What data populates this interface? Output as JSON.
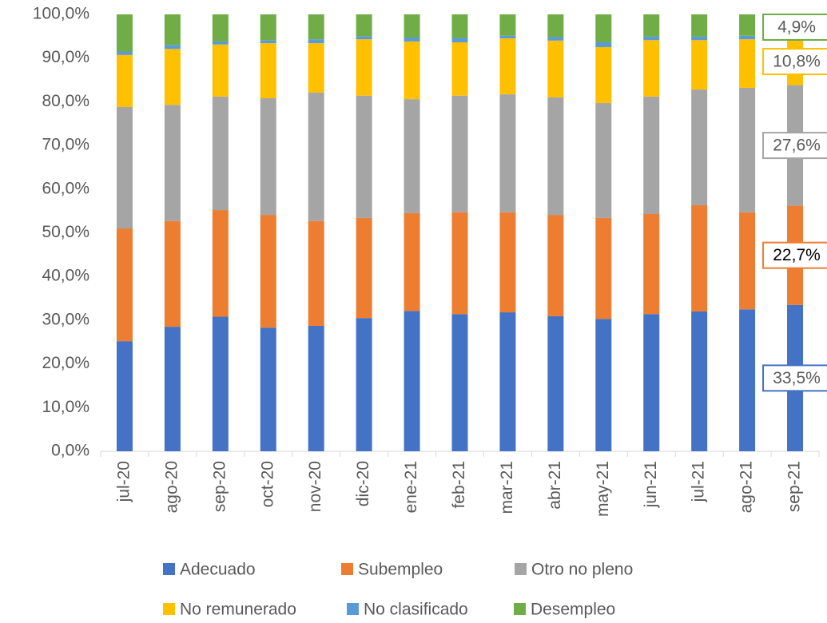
{
  "chart_data": {
    "type": "stacked_bar",
    "categories": [
      "jul-20",
      "ago-20",
      "sep-20",
      "oct-20",
      "nov-20",
      "dic-20",
      "ene-21",
      "feb-21",
      "mar-21",
      "abr-21",
      "may-21",
      "jun-21",
      "jul-21",
      "ago-21",
      "sep-21"
    ],
    "series": [
      {
        "name": "Adecuado",
        "color": "#4472c4",
        "values": [
          25.2,
          28.5,
          30.8,
          28.3,
          28.7,
          30.5,
          32.1,
          31.4,
          31.8,
          30.9,
          30.3,
          31.4,
          32.0,
          32.5,
          33.5
        ],
        "value_labels": [
          null,
          null,
          null,
          null,
          null,
          null,
          null,
          null,
          null,
          null,
          null,
          null,
          null,
          null,
          "33,5%"
        ]
      },
      {
        "name": "Subempleo",
        "color": "#ed7d31",
        "values": [
          25.8,
          24.2,
          24.4,
          25.8,
          24.0,
          22.9,
          22.4,
          23.3,
          22.9,
          23.2,
          23.1,
          22.9,
          24.3,
          22.2,
          22.7
        ],
        "value_labels": [
          null,
          null,
          null,
          null,
          null,
          null,
          null,
          null,
          null,
          null,
          null,
          null,
          null,
          null,
          "22,7%"
        ]
      },
      {
        "name": "Otro no pleno",
        "color": "#a5a5a5",
        "values": [
          27.8,
          26.6,
          26.0,
          26.7,
          29.4,
          28.0,
          26.1,
          26.7,
          27.0,
          26.9,
          26.3,
          26.9,
          26.5,
          28.5,
          27.6
        ],
        "value_labels": [
          null,
          null,
          null,
          null,
          null,
          null,
          null,
          null,
          null,
          null,
          null,
          null,
          null,
          null,
          "27,6%"
        ]
      },
      {
        "name": "No remunerado",
        "color": "#ffc000",
        "values": [
          11.9,
          12.8,
          11.9,
          12.6,
          11.3,
          12.9,
          13.2,
          12.2,
          12.8,
          13.0,
          12.8,
          12.9,
          11.3,
          11.1,
          10.8
        ],
        "value_labels": [
          null,
          null,
          null,
          null,
          null,
          null,
          null,
          null,
          null,
          null,
          null,
          null,
          null,
          null,
          "10,8%"
        ]
      },
      {
        "name": "No clasificado",
        "color": "#5b9bd5",
        "values": [
          0.8,
          0.9,
          0.7,
          0.7,
          0.9,
          0.7,
          0.9,
          1.0,
          0.6,
          0.8,
          1.1,
          0.8,
          0.8,
          0.8,
          0.5
        ]
      },
      {
        "name": "Desempleo",
        "color": "#70ad47",
        "values": [
          8.5,
          7.0,
          6.2,
          5.9,
          5.7,
          5.0,
          5.3,
          5.4,
          4.9,
          5.2,
          6.4,
          5.1,
          5.1,
          4.9,
          4.9
        ],
        "value_labels": [
          null,
          null,
          null,
          null,
          null,
          null,
          null,
          null,
          null,
          null,
          null,
          null,
          null,
          null,
          "4,9%"
        ]
      }
    ],
    "ylim": [
      0,
      100
    ],
    "yticks": [
      {
        "value": 0,
        "label": "0,0%"
      },
      {
        "value": 10,
        "label": "10,0%"
      },
      {
        "value": 20,
        "label": "20,0%"
      },
      {
        "value": 30,
        "label": "30,0%"
      },
      {
        "value": 40,
        "label": "40,0%"
      },
      {
        "value": 50,
        "label": "50,0%"
      },
      {
        "value": 60,
        "label": "60,0%"
      },
      {
        "value": 70,
        "label": "70,0%"
      },
      {
        "value": 80,
        "label": "80,0%"
      },
      {
        "value": 90,
        "label": "90,0%"
      },
      {
        "value": 100,
        "label": "100,0%"
      }
    ],
    "legend": "bottom"
  }
}
